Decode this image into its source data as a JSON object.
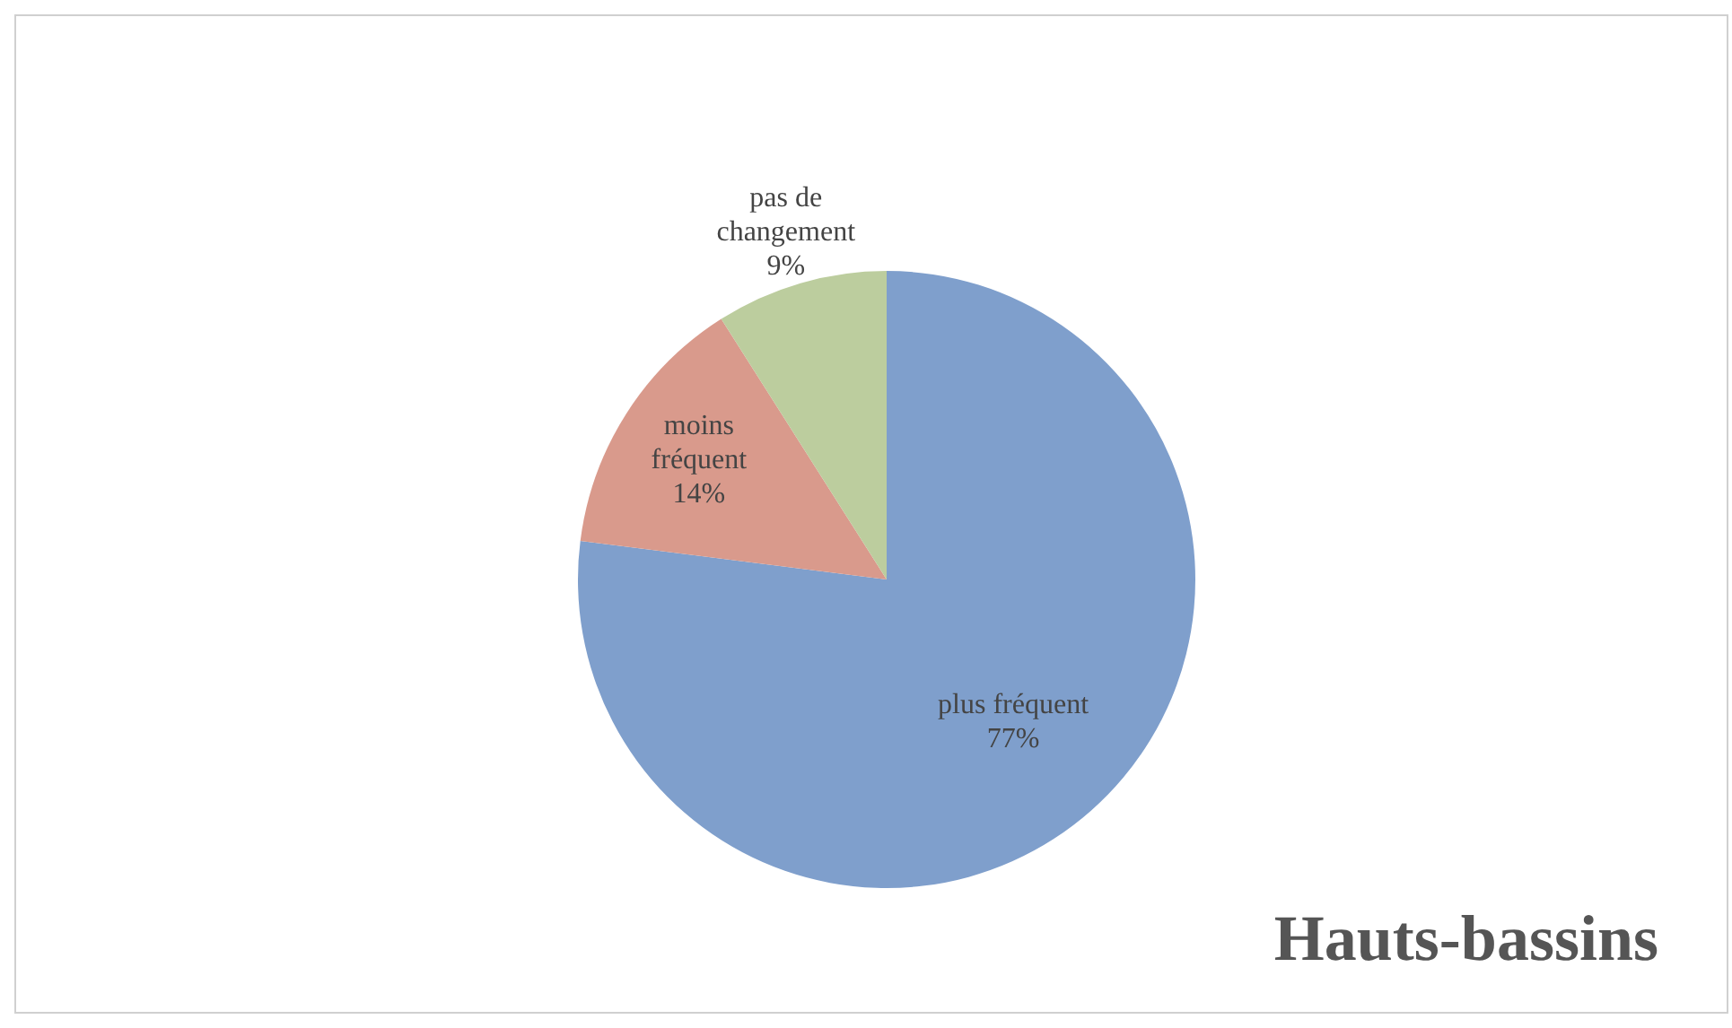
{
  "chart_data": {
    "type": "pie",
    "title": "Hauts-bassins",
    "categories": [
      "plus fréquent",
      "moins fréquent",
      "pas de changement"
    ],
    "values": [
      77,
      14,
      9
    ],
    "colors": [
      "#7f9fcc",
      "#d99a8c",
      "#bccd9e"
    ],
    "value_labels": [
      "77%",
      "14%",
      "9%"
    ],
    "legend": false
  }
}
